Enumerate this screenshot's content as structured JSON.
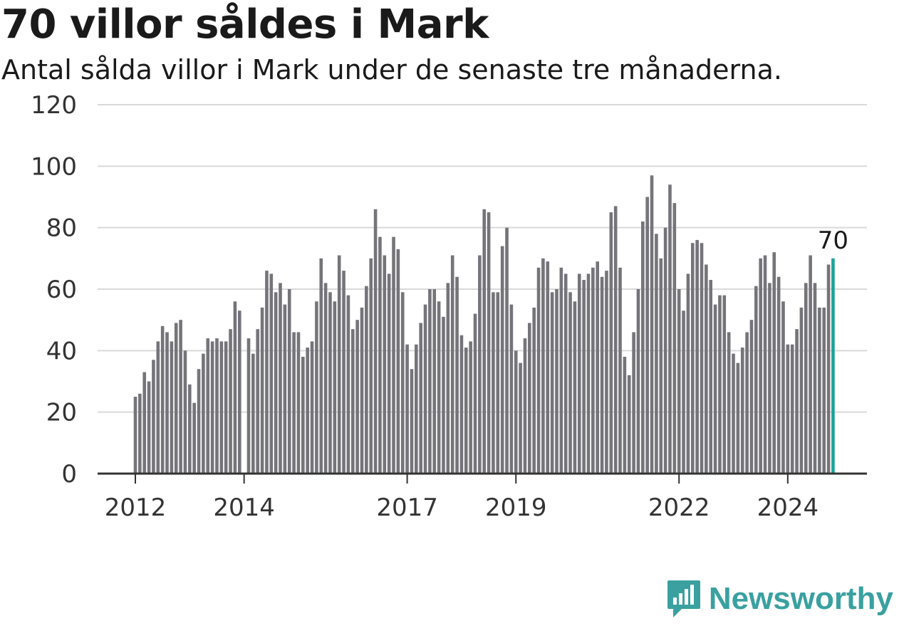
{
  "header": {
    "title": "70 villor såldes i Mark",
    "subtitle": "Antal sålda villor i Mark under de senaste tre månaderna."
  },
  "brand": {
    "name": "Newsworthy"
  },
  "colors": {
    "bar": "#75747a",
    "highlight": "#1aa39a",
    "grid": "#d9d9d9",
    "axis": "#333333",
    "brand": "#3aa0a0"
  },
  "chart_data": {
    "type": "bar",
    "ylim": [
      0,
      120
    ],
    "yticks": [
      "0",
      "20",
      "40",
      "60",
      "80",
      "100",
      "120"
    ],
    "xtick_labels": [
      "2012",
      "2014",
      "2017",
      "2019",
      "2022",
      "2024"
    ],
    "xtick_index": [
      0,
      24,
      60,
      84,
      120,
      144
    ],
    "highlight_label": "70",
    "grid": true,
    "values": [
      25,
      26,
      33,
      30,
      37,
      43,
      48,
      46,
      43,
      49,
      50,
      40,
      29,
      23,
      34,
      39,
      44,
      43,
      44,
      43,
      43,
      47,
      56,
      53,
      0,
      44,
      39,
      47,
      54,
      66,
      65,
      59,
      62,
      55,
      60,
      46,
      46,
      38,
      41,
      43,
      56,
      70,
      62,
      59,
      56,
      71,
      66,
      58,
      47,
      50,
      54,
      61,
      70,
      86,
      77,
      71,
      65,
      77,
      73,
      59,
      42,
      34,
      42,
      49,
      55,
      60,
      60,
      56,
      51,
      62,
      71,
      64,
      45,
      41,
      43,
      52,
      71,
      86,
      85,
      59,
      59,
      74,
      80,
      55,
      40,
      36,
      44,
      49,
      54,
      67,
      70,
      69,
      59,
      60,
      67,
      65,
      59,
      56,
      65,
      63,
      65,
      67,
      69,
      64,
      66,
      85,
      87,
      67,
      38,
      32,
      46,
      60,
      82,
      90,
      97,
      78,
      70,
      80,
      94,
      88,
      60,
      53,
      65,
      75,
      76,
      75,
      68,
      63,
      55,
      58,
      58,
      46,
      39,
      36,
      41,
      46,
      50,
      61,
      70,
      71,
      62,
      72,
      64,
      56,
      42,
      42,
      47,
      54,
      62,
      71,
      62,
      54,
      54,
      68,
      70
    ]
  }
}
